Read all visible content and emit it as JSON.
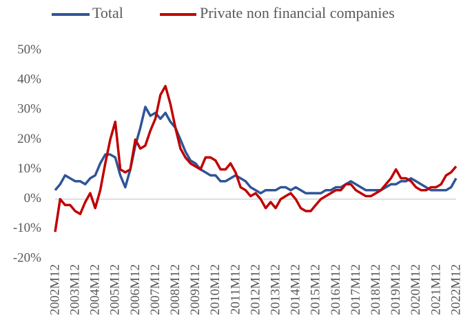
{
  "chart_data": {
    "type": "line",
    "categories": [
      "2002M12",
      null,
      null,
      null,
      "2003M12",
      null,
      null,
      null,
      "2004M12",
      null,
      null,
      null,
      "2005M12",
      null,
      null,
      null,
      "2006M12",
      null,
      null,
      null,
      "2007M12",
      null,
      null,
      null,
      "2008M12",
      null,
      null,
      null,
      "2009M12",
      null,
      null,
      null,
      "2010M12",
      null,
      null,
      null,
      "2011M12",
      null,
      null,
      null,
      "2012M12",
      null,
      null,
      null,
      "2013M12",
      null,
      null,
      null,
      "2014M12",
      null,
      null,
      null,
      "2015M12",
      null,
      null,
      null,
      "2016M12",
      null,
      null,
      null,
      "2017M12",
      null,
      null,
      null,
      "2018M12",
      null,
      null,
      null,
      "2019M12",
      null,
      null,
      null,
      "2020M12",
      null,
      null,
      null,
      "2021M12",
      null,
      null,
      null,
      "2022M12"
    ],
    "series": [
      {
        "name": "Total",
        "color": "#2f5597",
        "values": [
          3,
          5,
          8,
          7,
          6,
          6,
          5,
          7,
          8,
          12,
          15,
          15,
          14,
          8,
          4,
          10,
          18,
          24,
          31,
          28,
          29,
          27,
          29,
          26,
          24,
          20,
          16,
          13,
          12,
          10,
          9,
          8,
          8,
          6,
          6,
          7,
          8,
          7,
          6,
          4,
          3,
          2,
          3,
          3,
          3,
          4,
          4,
          3,
          4,
          3,
          2,
          2,
          2,
          2,
          3,
          3,
          4,
          4,
          5,
          6,
          5,
          4,
          3,
          3,
          3,
          3,
          4,
          5,
          5,
          6,
          6,
          7,
          6,
          5,
          4,
          3,
          3,
          3,
          3,
          4,
          7
        ]
      },
      {
        "name": "Private non financial companies",
        "color": "#c00000",
        "values": [
          -11,
          0,
          -2,
          -2,
          -4,
          -5,
          -1,
          2,
          -3,
          3,
          12,
          20,
          26,
          10,
          9,
          10,
          20,
          17,
          18,
          23,
          27,
          35,
          38,
          32,
          24,
          17,
          14,
          12,
          11,
          10,
          14,
          14,
          13,
          10,
          10,
          12,
          9,
          4,
          3,
          1,
          2,
          0,
          -3,
          -1,
          -3,
          0,
          1,
          2,
          0,
          -3,
          -4,
          -4,
          -2,
          0,
          1,
          2,
          3,
          3,
          5,
          5,
          3,
          2,
          1,
          1,
          2,
          3,
          5,
          7,
          10,
          7,
          7,
          6,
          4,
          3,
          3,
          4,
          4,
          5,
          8,
          9,
          11
        ]
      }
    ],
    "ylim": [
      -20,
      50
    ],
    "yticks": [
      {
        "value": -20,
        "label": "-20%"
      },
      {
        "value": -10,
        "label": "-10%"
      },
      {
        "value": 0,
        "label": "0%"
      },
      {
        "value": 10,
        "label": "10%"
      },
      {
        "value": 20,
        "label": "20%"
      },
      {
        "value": 30,
        "label": "30%"
      },
      {
        "value": 40,
        "label": "40%"
      },
      {
        "value": 50,
        "label": "50%"
      }
    ],
    "legend": "top"
  }
}
